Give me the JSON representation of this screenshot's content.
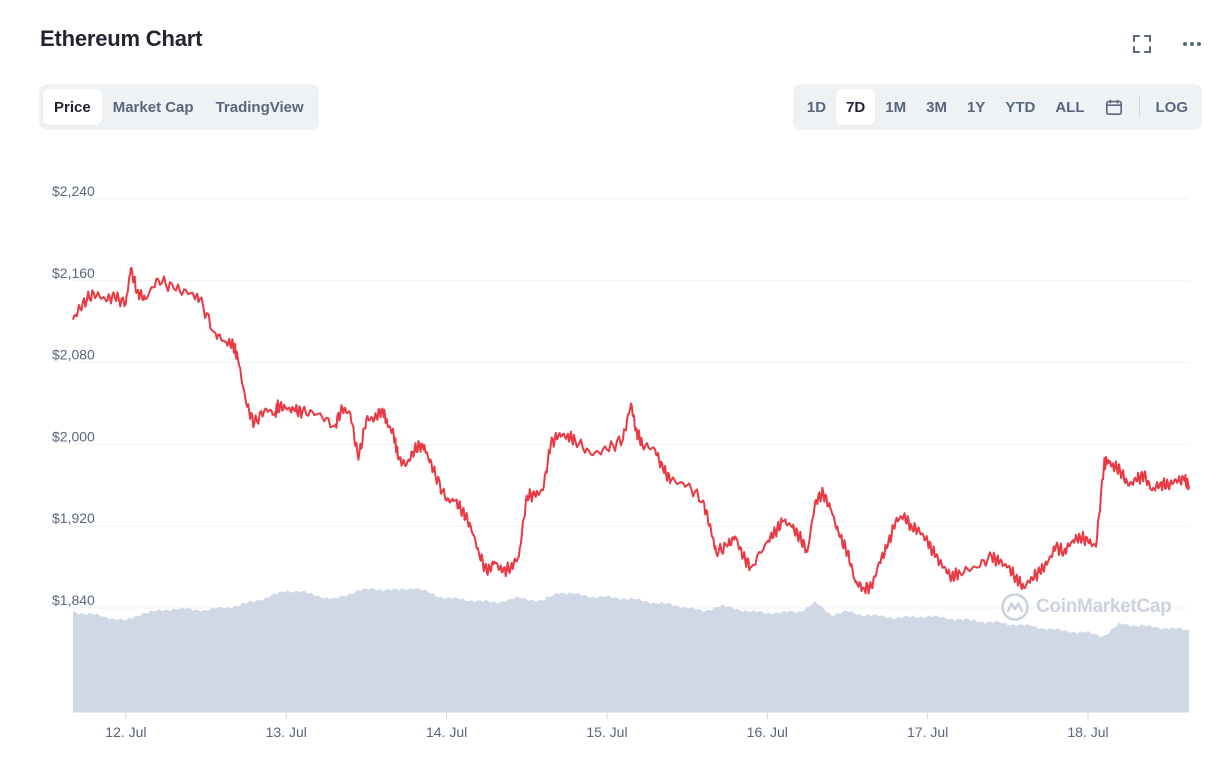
{
  "header": {
    "title": "Ethereum Chart"
  },
  "icons": {
    "fullscreen": "fullscreen-icon",
    "more": "more-icon",
    "calendar": "calendar-icon"
  },
  "tabs": [
    {
      "label": "Price",
      "active": true
    },
    {
      "label": "Market Cap",
      "active": false
    },
    {
      "label": "TradingView",
      "active": false
    }
  ],
  "ranges": [
    {
      "label": "1D",
      "active": false
    },
    {
      "label": "7D",
      "active": true
    },
    {
      "label": "1M",
      "active": false
    },
    {
      "label": "3M",
      "active": false
    },
    {
      "label": "1Y",
      "active": false
    },
    {
      "label": "YTD",
      "active": false
    },
    {
      "label": "ALL",
      "active": false
    }
  ],
  "log_label": "LOG",
  "watermark": "CoinMarketCap",
  "colors": {
    "line": "#ea3943",
    "volume": "#cfd6e4",
    "grid": "#eff2f5",
    "axis_text": "#58667e"
  },
  "chart_data": {
    "type": "line",
    "title": "",
    "xlabel": "",
    "ylabel": "",
    "y_ticks": [
      "$2,240",
      "$2,160",
      "$2,080",
      "$2,000",
      "$1,920",
      "$1,840"
    ],
    "y_tick_values": [
      2240,
      2160,
      2080,
      2000,
      1920,
      1840
    ],
    "ylim": [
      1840,
      2240
    ],
    "x_ticks": [
      "12. Jul",
      "13. Jul",
      "14. Jul",
      "15. Jul",
      "16. Jul",
      "17. Jul",
      "18. Jul"
    ],
    "x_tick_values": [
      12,
      13,
      14,
      15,
      16,
      17,
      18
    ],
    "xlim": [
      11.67,
      18.63
    ],
    "grid": true,
    "series": [
      {
        "x": [
          11.67,
          11.73,
          11.8,
          11.87,
          11.93,
          12.0,
          12.03,
          12.07,
          12.12,
          12.2,
          12.3,
          12.4,
          12.46,
          12.55,
          12.62,
          12.67,
          12.7,
          12.75,
          12.8,
          12.87,
          12.93,
          12.95,
          13.0,
          13.05,
          13.1,
          13.2,
          13.3,
          13.35,
          13.4,
          13.45,
          13.5,
          13.55,
          13.6,
          13.63,
          13.67,
          13.7,
          13.75,
          13.8,
          13.85,
          13.88,
          13.93,
          14.0,
          14.05,
          14.1,
          14.15,
          14.2,
          14.25,
          14.3,
          14.35,
          14.4,
          14.45,
          14.5,
          14.55,
          14.6,
          14.65,
          14.7,
          14.75,
          14.8,
          14.9,
          15.0,
          15.1,
          15.15,
          15.18,
          15.22,
          15.3,
          15.35,
          15.4,
          15.5,
          15.6,
          15.65,
          15.68,
          15.75,
          15.8,
          15.85,
          15.9,
          16.0,
          16.05,
          16.1,
          16.15,
          16.2,
          16.25,
          16.3,
          16.35,
          16.4,
          16.45,
          16.5,
          16.55,
          16.6,
          16.65,
          16.7,
          16.75,
          16.8,
          16.85,
          16.9,
          16.95,
          17.0,
          17.05,
          17.1,
          17.15,
          17.2,
          17.3,
          17.4,
          17.45,
          17.5,
          17.55,
          17.6,
          17.65,
          17.7,
          17.75,
          17.8,
          17.85,
          17.9,
          17.95,
          18.0,
          18.05,
          18.1,
          18.12,
          18.15,
          18.2,
          18.25,
          18.3,
          18.35,
          18.4,
          18.45,
          18.5,
          18.55,
          18.6,
          18.63
        ],
        "y": [
          2122,
          2138,
          2148,
          2142,
          2144,
          2138,
          2172,
          2150,
          2142,
          2162,
          2152,
          2148,
          2142,
          2110,
          2100,
          2098,
          2082,
          2040,
          2020,
          2035,
          2030,
          2038,
          2035,
          2033,
          2032,
          2030,
          2018,
          2035,
          2030,
          1985,
          2025,
          2025,
          2035,
          2020,
          2010,
          1985,
          1980,
          1995,
          2000,
          1990,
          1970,
          1945,
          1945,
          1935,
          1920,
          1895,
          1875,
          1885,
          1875,
          1880,
          1890,
          1950,
          1950,
          1955,
          2000,
          2010,
          2008,
          2005,
          1990,
          1995,
          2005,
          2040,
          2015,
          2000,
          1995,
          1975,
          1965,
          1960,
          1945,
          1915,
          1895,
          1900,
          1910,
          1890,
          1880,
          1905,
          1915,
          1925,
          1920,
          1910,
          1895,
          1945,
          1952,
          1935,
          1910,
          1895,
          1865,
          1860,
          1860,
          1885,
          1900,
          1925,
          1930,
          1920,
          1915,
          1905,
          1890,
          1880,
          1870,
          1875,
          1880,
          1890,
          1885,
          1880,
          1870,
          1860,
          1870,
          1875,
          1885,
          1900,
          1895,
          1905,
          1910,
          1905,
          1900,
          1980,
          1985,
          1980,
          1975,
          1960,
          1965,
          1970,
          1955,
          1962,
          1960,
          1965,
          1965,
          1960
        ],
        "color": "#ea3943"
      }
    ],
    "volume": {
      "x": [
        11.67,
        11.8,
        12.0,
        12.1,
        12.3,
        12.5,
        12.7,
        12.9,
        13.0,
        13.1,
        13.3,
        13.45,
        13.55,
        13.7,
        13.8,
        13.95,
        14.1,
        14.3,
        14.45,
        14.6,
        14.7,
        14.9,
        15.1,
        15.3,
        15.5,
        15.6,
        15.7,
        15.9,
        16.0,
        16.2,
        16.3,
        16.4,
        16.5,
        16.6,
        16.8,
        17.0,
        17.3,
        17.6,
        17.8,
        18.0,
        18.1,
        18.2,
        18.4,
        18.63
      ],
      "levels": [
        0.66,
        0.64,
        0.6,
        0.65,
        0.68,
        0.67,
        0.7,
        0.76,
        0.8,
        0.79,
        0.74,
        0.8,
        0.81,
        0.8,
        0.82,
        0.76,
        0.74,
        0.72,
        0.75,
        0.73,
        0.79,
        0.76,
        0.75,
        0.72,
        0.69,
        0.66,
        0.7,
        0.66,
        0.65,
        0.66,
        0.72,
        0.64,
        0.66,
        0.64,
        0.62,
        0.63,
        0.6,
        0.57,
        0.54,
        0.52,
        0.5,
        0.58,
        0.56,
        0.54
      ]
    }
  }
}
